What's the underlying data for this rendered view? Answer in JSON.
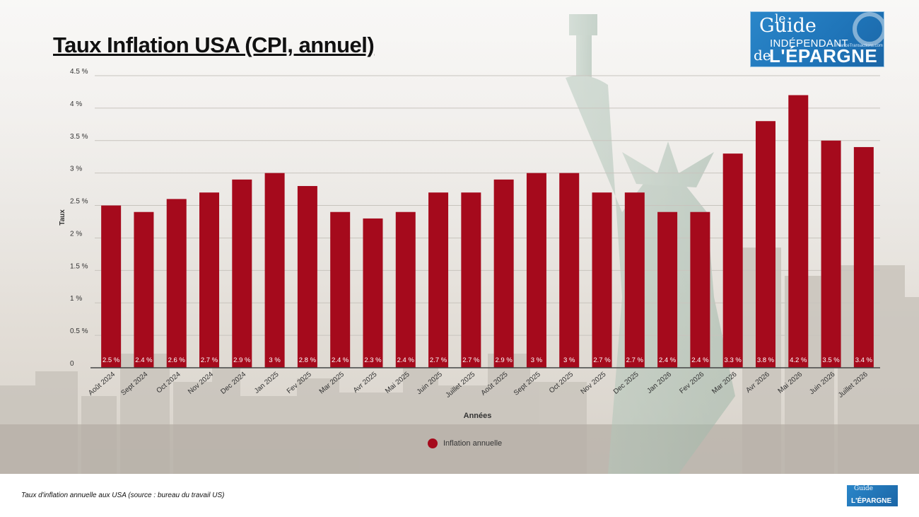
{
  "title": "Taux Inflation USA (CPI, annuel)",
  "logo": {
    "le": "le",
    "guide": "Guide",
    "independant": "INDÉPENDANT",
    "de": "de",
    "epargne": "L'ÉPARGNE",
    "site": "FranceTransactions.com"
  },
  "caption": "Taux d'inflation annuelle aux USA (source : bureau du travail US)",
  "colors": {
    "bar": "#a50a1c",
    "grid": "#c8c4be",
    "axis": "#444444"
  },
  "chart_data": {
    "type": "bar",
    "title": "Taux Inflation USA (CPI, annuel)",
    "xlabel": "Années",
    "ylabel": "Taux",
    "ylim": [
      0,
      4.5
    ],
    "yticks": [
      0,
      0.5,
      1,
      1.5,
      2,
      2.5,
      3,
      3.5,
      4,
      4.5
    ],
    "ytick_labels": [
      "0",
      "0.5 %",
      "1 %",
      "1.5 %",
      "2 %",
      "2.5 %",
      "3 %",
      "3.5 %",
      "4 %",
      "4.5 %"
    ],
    "grid": true,
    "legend_position": "bottom-center",
    "categories": [
      "Août 2024",
      "Sept 2024",
      "Oct 2024",
      "Nov 2024",
      "Dec 2024",
      "Jan 2025",
      "Fev 2025",
      "Mar 2025",
      "Avr 2025",
      "Mai 2025",
      "Juin 2025",
      "Juillet 2025",
      "Août 2025",
      "Sept 2025",
      "Oct 2025",
      "Nov 2025",
      "Dec 2025",
      "Jan 2026",
      "Fev 2026",
      "Mar 2026",
      "Avr 2026",
      "Mai 2026",
      "Juin 2026",
      "Juillet 2026"
    ],
    "series": [
      {
        "name": "Inflation annuelle",
        "values": [
          2.5,
          2.4,
          2.6,
          2.7,
          2.9,
          3,
          2.8,
          2.4,
          2.3,
          2.4,
          2.7,
          2.7,
          2.9,
          3,
          3,
          2.7,
          2.7,
          2.4,
          2.4,
          3.3,
          3.8,
          4.2,
          3.5,
          3.4
        ],
        "labels": [
          "2.5 %",
          "2.4 %",
          "2.6 %",
          "2.7 %",
          "2.9 %",
          "3 %",
          "2.8 %",
          "2.4 %",
          "2.3 %",
          "2.4 %",
          "2.7 %",
          "2.7 %",
          "2.9 %",
          "3 %",
          "3 %",
          "2.7 %",
          "2.7 %",
          "2.4 %",
          "2.4 %",
          "3.3 %",
          "3.8 %",
          "4.2 %",
          "3.5 %",
          "3.4 %"
        ]
      }
    ]
  }
}
